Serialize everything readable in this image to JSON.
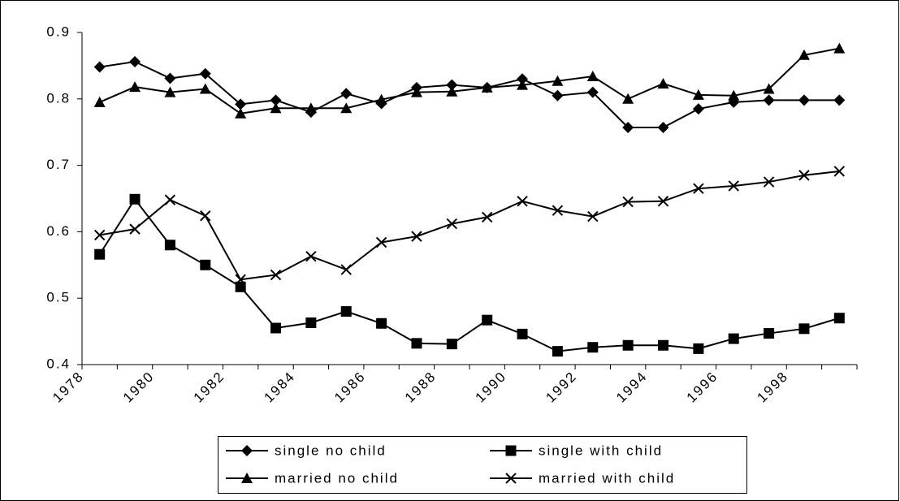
{
  "chart_data": {
    "type": "line",
    "categories": [
      "1978",
      null,
      "1980",
      null,
      "1982",
      null,
      "1984",
      null,
      "1986",
      null,
      "1988",
      null,
      "1990",
      null,
      "1992",
      null,
      "1994",
      null,
      "1996",
      null,
      "1998",
      null
    ],
    "ylim": [
      0.4,
      0.9
    ],
    "yticks": [
      0.4,
      0.5,
      0.6,
      0.7,
      0.8,
      0.9
    ],
    "series": [
      {
        "name": "single no child",
        "color": "#000000",
        "marker": "diamond",
        "values": [
          0.848,
          0.856,
          0.831,
          0.838,
          0.792,
          0.798,
          0.78,
          0.808,
          0.793,
          0.817,
          0.821,
          0.817,
          0.83,
          0.805,
          0.81,
          0.757,
          0.757,
          0.785,
          0.795,
          0.798,
          0.798,
          0.798
        ]
      },
      {
        "name": "single with child",
        "color": "#000000",
        "marker": "square",
        "values": [
          0.566,
          0.649,
          0.58,
          0.55,
          0.517,
          0.455,
          0.463,
          0.48,
          0.462,
          0.432,
          0.431,
          0.467,
          0.446,
          0.42,
          0.426,
          0.429,
          0.429,
          0.424,
          0.439,
          0.447,
          0.454,
          0.47
        ]
      },
      {
        "name": "married no child",
        "color": "#000000",
        "marker": "triangle",
        "values": [
          0.795,
          0.818,
          0.81,
          0.815,
          0.778,
          0.786,
          0.786,
          0.786,
          0.799,
          0.81,
          0.811,
          0.817,
          0.821,
          0.827,
          0.834,
          0.8,
          0.823,
          0.806,
          0.805,
          0.815,
          0.866,
          0.876
        ]
      },
      {
        "name": "married with child",
        "color": "#000000",
        "marker": "cross",
        "values": [
          0.595,
          0.604,
          0.648,
          0.624,
          0.528,
          0.535,
          0.563,
          0.543,
          0.584,
          0.593,
          0.612,
          0.622,
          0.646,
          0.632,
          0.623,
          0.645,
          0.646,
          0.665,
          0.669,
          0.675,
          0.685,
          0.691
        ]
      }
    ]
  }
}
